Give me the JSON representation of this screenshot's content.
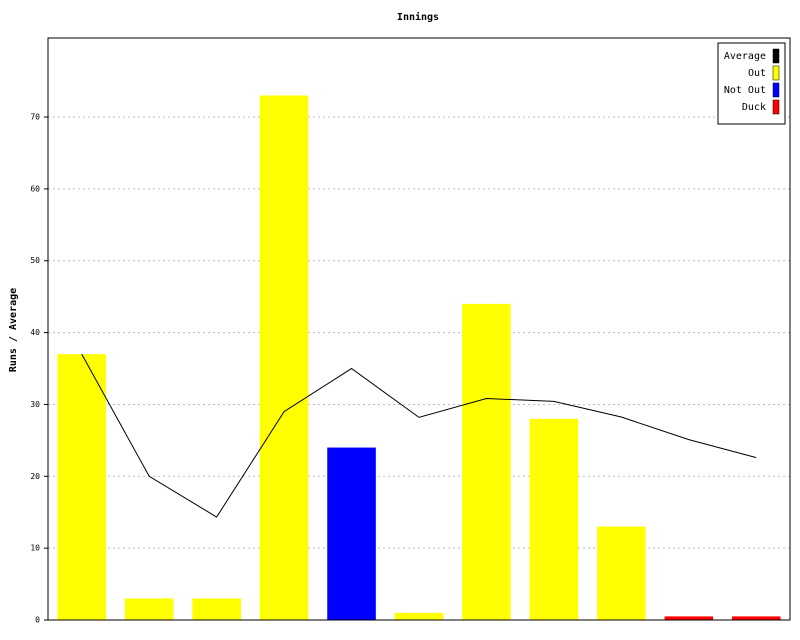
{
  "chart_data": {
    "type": "bar",
    "title": "Innings",
    "y_label": "Runs / Average",
    "categories": [
      null,
      null,
      null,
      null,
      null,
      null,
      null,
      null,
      null,
      null,
      null
    ],
    "series": [
      {
        "name": "Average",
        "color": "#000000",
        "type": "line",
        "values": [
          37,
          20,
          14.33,
          29,
          35,
          28.2,
          30.83,
          30.43,
          28.25,
          25.1,
          22.6
        ]
      },
      {
        "name": "Out",
        "color": "#ffff00",
        "type": "bar",
        "values": [
          37,
          3,
          3,
          73,
          null,
          1,
          44,
          28,
          13,
          null,
          null
        ]
      },
      {
        "name": "Not Out",
        "color": "#0000ff",
        "type": "bar",
        "values": [
          null,
          null,
          null,
          null,
          24,
          null,
          null,
          null,
          null,
          null,
          null
        ]
      },
      {
        "name": "Duck",
        "color": "#ff0000",
        "type": "bar",
        "values": [
          null,
          null,
          null,
          null,
          null,
          null,
          null,
          null,
          null,
          0.5,
          0.5
        ]
      }
    ],
    "ylim": [
      0,
      81
    ],
    "yticks": [
      0,
      10,
      20,
      30,
      40,
      50,
      60,
      70
    ],
    "grid": true,
    "legend": "top-right"
  }
}
